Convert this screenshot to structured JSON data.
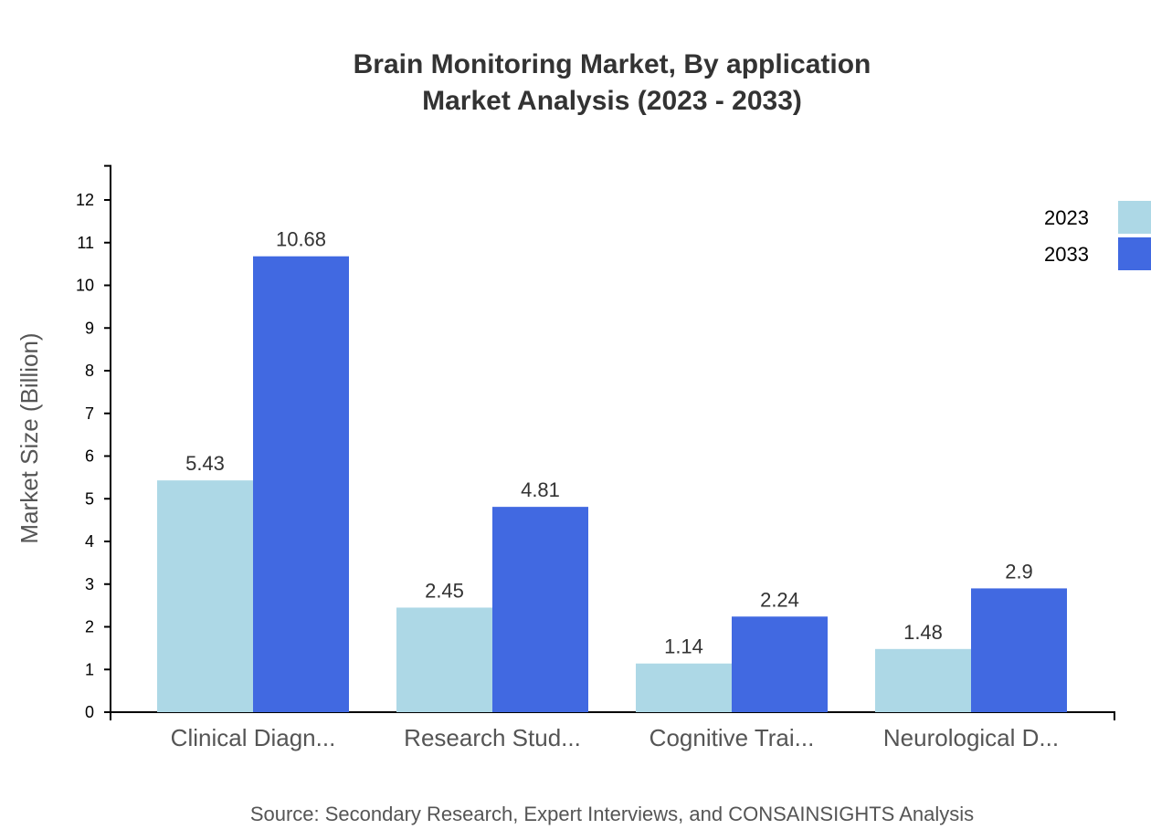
{
  "chart_data": {
    "type": "bar",
    "title": "Brain Monitoring Market, By application",
    "subtitle": "Market Analysis (2023 - 2033)",
    "xlabel": "",
    "ylabel": "Market Size (Billion)",
    "ylim": [
      0,
      12.8
    ],
    "yticks": [
      0,
      1,
      2,
      3,
      4,
      5,
      6,
      7,
      8,
      9,
      10,
      11,
      12
    ],
    "grid": false,
    "legend_position": "top-right",
    "categories": [
      "Clinical Diagn...",
      "Research Stud...",
      "Cognitive Trai...",
      "Neurological D..."
    ],
    "series": [
      {
        "name": "2023",
        "color": "#add8e6",
        "values": [
          5.43,
          2.45,
          1.14,
          1.48
        ]
      },
      {
        "name": "2033",
        "color": "#4169e1",
        "values": [
          10.68,
          4.81,
          2.24,
          2.9
        ]
      }
    ],
    "source": "Source: Secondary Research, Expert Interviews, and CONSAINSIGHTS Analysis"
  }
}
